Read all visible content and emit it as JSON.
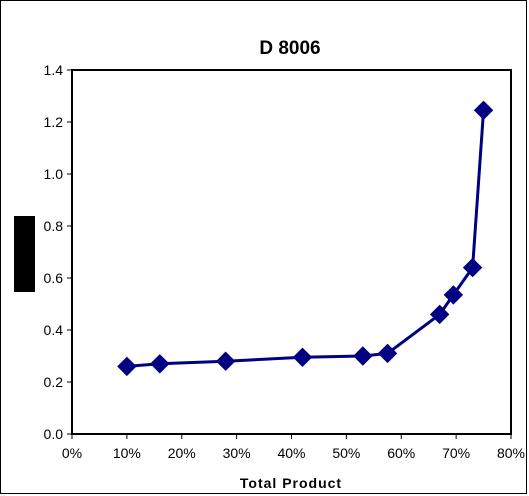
{
  "chart_data": {
    "type": "line",
    "title": "D 8006",
    "xlabel": "Total Product",
    "ylabel": "",
    "xlim": [
      0,
      80
    ],
    "ylim": [
      0,
      1.4
    ],
    "x_ticks": [
      "0%",
      "10%",
      "20%",
      "30%",
      "40%",
      "50%",
      "60%",
      "70%",
      "80%"
    ],
    "y_ticks": [
      "0.0",
      "0.2",
      "0.4",
      "0.6",
      "0.8",
      "1.0",
      "1.2",
      "1.4"
    ],
    "grid": false,
    "legend": "none",
    "series": [
      {
        "color": "#000080",
        "marker": "diamond",
        "points": [
          {
            "x": 10,
            "y": 0.26
          },
          {
            "x": 16,
            "y": 0.27
          },
          {
            "x": 28,
            "y": 0.28
          },
          {
            "x": 42,
            "y": 0.295
          },
          {
            "x": 53,
            "y": 0.3
          },
          {
            "x": 57.5,
            "y": 0.31
          },
          {
            "x": 67,
            "y": 0.46
          },
          {
            "x": 69.5,
            "y": 0.535
          },
          {
            "x": 73,
            "y": 0.64
          },
          {
            "x": 75,
            "y": 1.245
          }
        ]
      }
    ]
  }
}
